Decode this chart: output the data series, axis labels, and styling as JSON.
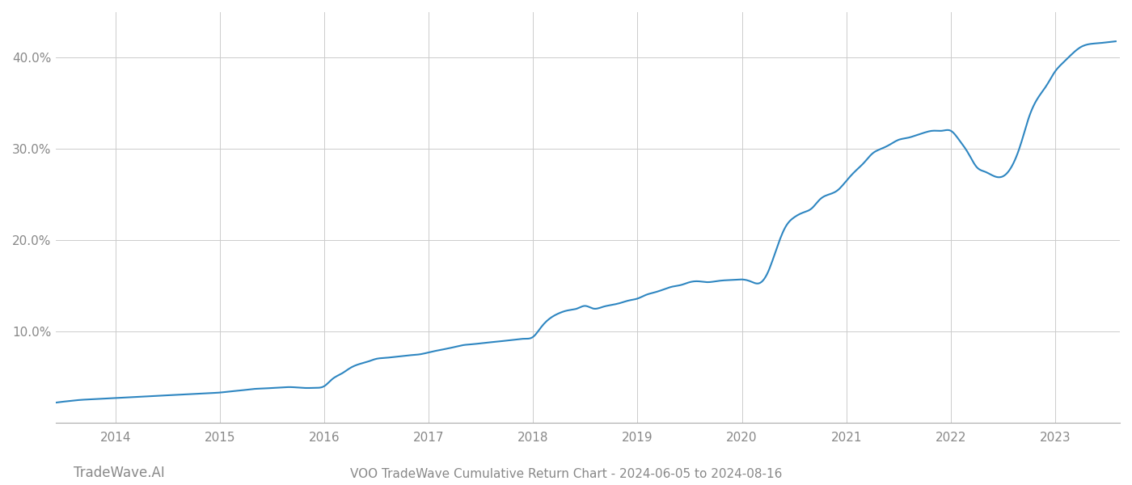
{
  "title": "VOO TradeWave Cumulative Return Chart - 2024-06-05 to 2024-08-16",
  "watermark": "TradeWave.AI",
  "line_color": "#2e86c1",
  "background_color": "#ffffff",
  "grid_color": "#cccccc",
  "x_years": [
    2014,
    2015,
    2016,
    2017,
    2018,
    2019,
    2020,
    2021,
    2022,
    2023
  ],
  "x_data": [
    2013.43,
    2013.5,
    2013.58,
    2013.67,
    2013.75,
    2013.83,
    2013.92,
    2014.0,
    2014.08,
    2014.17,
    2014.25,
    2014.33,
    2014.42,
    2014.5,
    2014.58,
    2014.67,
    2014.75,
    2014.83,
    2014.92,
    2015.0,
    2015.08,
    2015.17,
    2015.25,
    2015.33,
    2015.42,
    2015.5,
    2015.58,
    2015.67,
    2015.75,
    2015.83,
    2015.92,
    2016.0,
    2016.08,
    2016.17,
    2016.25,
    2016.33,
    2016.42,
    2016.5,
    2016.58,
    2016.67,
    2016.75,
    2016.83,
    2016.92,
    2017.0,
    2017.08,
    2017.17,
    2017.25,
    2017.33,
    2017.42,
    2017.5,
    2017.58,
    2017.67,
    2017.75,
    2017.83,
    2017.92,
    2018.0,
    2018.08,
    2018.17,
    2018.25,
    2018.33,
    2018.42,
    2018.5,
    2018.58,
    2018.67,
    2018.75,
    2018.83,
    2018.92,
    2019.0,
    2019.08,
    2019.17,
    2019.25,
    2019.33,
    2019.42,
    2019.5,
    2019.58,
    2019.67,
    2019.75,
    2019.83,
    2019.92,
    2020.0,
    2020.08,
    2020.17,
    2020.25,
    2020.33,
    2020.42,
    2020.5,
    2020.58,
    2020.67,
    2020.75,
    2020.83,
    2020.92,
    2021.0,
    2021.08,
    2021.17,
    2021.25,
    2021.33,
    2021.42,
    2021.5,
    2021.58,
    2021.67,
    2021.75,
    2021.83,
    2021.92,
    2022.0,
    2022.08,
    2022.17,
    2022.25,
    2022.33,
    2022.42,
    2022.5,
    2022.58,
    2022.67,
    2022.75,
    2022.83,
    2022.92,
    2023.0,
    2023.08,
    2023.17,
    2023.25,
    2023.33,
    2023.42,
    2023.5,
    2023.58
  ],
  "y_data": [
    2.2,
    2.3,
    2.4,
    2.5,
    2.55,
    2.6,
    2.65,
    2.7,
    2.75,
    2.8,
    2.85,
    2.9,
    2.95,
    3.0,
    3.05,
    3.1,
    3.15,
    3.2,
    3.25,
    3.3,
    3.4,
    3.5,
    3.6,
    3.7,
    3.75,
    3.8,
    3.85,
    3.9,
    3.85,
    3.8,
    3.82,
    4.0,
    4.8,
    5.4,
    6.0,
    6.4,
    6.7,
    7.0,
    7.1,
    7.2,
    7.3,
    7.4,
    7.5,
    7.7,
    7.9,
    8.1,
    8.3,
    8.5,
    8.6,
    8.7,
    8.8,
    8.9,
    9.0,
    9.1,
    9.2,
    9.4,
    10.5,
    11.5,
    12.0,
    12.3,
    12.5,
    12.8,
    12.5,
    12.7,
    12.9,
    13.1,
    13.4,
    13.6,
    14.0,
    14.3,
    14.6,
    14.9,
    15.1,
    15.4,
    15.5,
    15.4,
    15.5,
    15.6,
    15.65,
    15.7,
    15.5,
    15.3,
    16.5,
    19.0,
    21.5,
    22.5,
    23.0,
    23.5,
    24.5,
    25.0,
    25.5,
    26.5,
    27.5,
    28.5,
    29.5,
    30.0,
    30.5,
    31.0,
    31.2,
    31.5,
    31.8,
    32.0,
    32.0,
    32.0,
    31.0,
    29.5,
    28.0,
    27.5,
    27.0,
    27.0,
    28.0,
    30.5,
    33.5,
    35.5,
    37.0,
    38.5,
    39.5,
    40.5,
    41.2,
    41.5,
    41.6,
    41.7,
    41.8
  ],
  "ylim": [
    0,
    45
  ],
  "yticks": [
    10.0,
    20.0,
    30.0,
    40.0
  ],
  "ytick_labels": [
    "10.0%",
    "20.0%",
    "30.0%",
    "40.0%"
  ],
  "xlim": [
    2013.43,
    2023.62
  ],
  "title_fontsize": 11,
  "tick_fontsize": 11,
  "watermark_fontsize": 12
}
